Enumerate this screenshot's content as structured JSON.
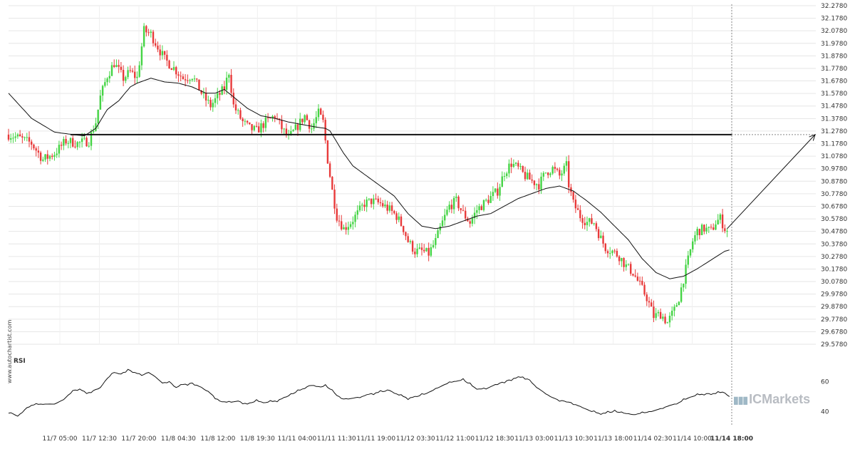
{
  "chart_data": {
    "type": "candlestick",
    "y_axis": {
      "ticks": [
        "32.2780",
        "32.1780",
        "32.0780",
        "31.9780",
        "31.8780",
        "31.7780",
        "31.6780",
        "31.5780",
        "31.4780",
        "31.3780",
        "31.2780",
        "31.1780",
        "31.0780",
        "30.9780",
        "30.8780",
        "30.7780",
        "30.6780",
        "30.5780",
        "30.4780",
        "30.3780",
        "30.2780",
        "30.1780",
        "30.0780",
        "29.9780",
        "29.8780",
        "29.7780",
        "29.6780",
        "29.5780"
      ],
      "range": [
        29.578,
        32.278
      ],
      "position": "right"
    },
    "x_axis": {
      "ticks": [
        "11/7 05:00",
        "11/7 12:30",
        "11/7 20:00",
        "11/8 04:30",
        "11/8 12:00",
        "11/8 19:30",
        "11/11 04:00",
        "11/11 11:30",
        "11/11 19:00",
        "11/12 03:30",
        "11/12 11:00",
        "11/12 18:30",
        "11/13 03:00",
        "11/13 10:30",
        "11/13 18:00",
        "11/14 02:30",
        "11/14 10:00",
        "11/14 18:00"
      ],
      "highlight": "11/14 18:00"
    },
    "price_anchors": [
      [
        0,
        31.25
      ],
      [
        5,
        31.22
      ],
      [
        10,
        31.18
      ],
      [
        15,
        31.05
      ],
      [
        20,
        31.1
      ],
      [
        25,
        31.2
      ],
      [
        30,
        31.18
      ],
      [
        35,
        31.2
      ],
      [
        38,
        31.35
      ],
      [
        40,
        31.55
      ],
      [
        43,
        31.72
      ],
      [
        46,
        31.82
      ],
      [
        50,
        31.7
      ],
      [
        53,
        31.75
      ],
      [
        56,
        31.7
      ],
      [
        59,
        32.08
      ],
      [
        62,
        32.05
      ],
      [
        65,
        31.95
      ],
      [
        68,
        31.85
      ],
      [
        72,
        31.78
      ],
      [
        76,
        31.7
      ],
      [
        80,
        31.72
      ],
      [
        82,
        31.65
      ],
      [
        85,
        31.55
      ],
      [
        88,
        31.48
      ],
      [
        91,
        31.55
      ],
      [
        94,
        31.62
      ],
      [
        96,
        31.75
      ],
      [
        98,
        31.48
      ],
      [
        102,
        31.35
      ],
      [
        105,
        31.3
      ],
      [
        108,
        31.28
      ],
      [
        112,
        31.35
      ],
      [
        116,
        31.4
      ],
      [
        119,
        31.3
      ],
      [
        122,
        31.22
      ],
      [
        126,
        31.32
      ],
      [
        129,
        31.4
      ],
      [
        132,
        31.3
      ],
      [
        135,
        31.42
      ],
      [
        137,
        31.35
      ],
      [
        139,
        31.05
      ],
      [
        141,
        30.8
      ],
      [
        143,
        30.6
      ],
      [
        146,
        30.5
      ],
      [
        149,
        30.55
      ],
      [
        152,
        30.62
      ],
      [
        155,
        30.7
      ],
      [
        158,
        30.72
      ],
      [
        162,
        30.7
      ],
      [
        166,
        30.65
      ],
      [
        169,
        30.6
      ],
      [
        172,
        30.5
      ],
      [
        174,
        30.4
      ],
      [
        177,
        30.32
      ],
      [
        180,
        30.32
      ],
      [
        183,
        30.3
      ],
      [
        186,
        30.4
      ],
      [
        189,
        30.55
      ],
      [
        192,
        30.68
      ],
      [
        195,
        30.72
      ],
      [
        198,
        30.62
      ],
      [
        201,
        30.55
      ],
      [
        204,
        30.65
      ],
      [
        207,
        30.7
      ],
      [
        210,
        30.75
      ],
      [
        213,
        30.8
      ],
      [
        216,
        30.95
      ],
      [
        219,
        31.02
      ],
      [
        222,
        30.98
      ],
      [
        225,
        30.92
      ],
      [
        228,
        30.88
      ],
      [
        231,
        30.85
      ],
      [
        234,
        30.95
      ],
      [
        237,
        30.98
      ],
      [
        240,
        30.92
      ],
      [
        243,
        31.0
      ],
      [
        244,
        30.85
      ],
      [
        246,
        30.7
      ],
      [
        249,
        30.6
      ],
      [
        252,
        30.55
      ],
      [
        255,
        30.55
      ],
      [
        258,
        30.42
      ],
      [
        260,
        30.35
      ],
      [
        263,
        30.32
      ],
      [
        266,
        30.28
      ],
      [
        269,
        30.2
      ],
      [
        272,
        30.15
      ],
      [
        275,
        30.05
      ],
      [
        278,
        29.95
      ],
      [
        281,
        29.8
      ],
      [
        284,
        29.82
      ],
      [
        287,
        29.75
      ],
      [
        290,
        29.85
      ],
      [
        292,
        29.95
      ],
      [
        294,
        30.1
      ],
      [
        296,
        30.25
      ],
      [
        298,
        30.4
      ],
      [
        300,
        30.48
      ],
      [
        303,
        30.5
      ],
      [
        306,
        30.48
      ],
      [
        308,
        30.55
      ],
      [
        310,
        30.58
      ],
      [
        312,
        30.5
      ],
      [
        313,
        30.48
      ]
    ],
    "moving_average": [
      [
        0,
        31.58
      ],
      [
        10,
        31.38
      ],
      [
        20,
        31.27
      ],
      [
        28,
        31.25
      ],
      [
        33,
        31.24
      ],
      [
        38,
        31.3
      ],
      [
        43,
        31.45
      ],
      [
        48,
        31.52
      ],
      [
        53,
        31.63
      ],
      [
        56,
        31.66
      ],
      [
        62,
        31.7
      ],
      [
        68,
        31.67
      ],
      [
        74,
        31.66
      ],
      [
        80,
        31.63
      ],
      [
        86,
        31.58
      ],
      [
        90,
        31.58
      ],
      [
        94,
        31.61
      ],
      [
        98,
        31.55
      ],
      [
        104,
        31.46
      ],
      [
        110,
        31.4
      ],
      [
        116,
        31.38
      ],
      [
        122,
        31.35
      ],
      [
        128,
        31.33
      ],
      [
        134,
        31.31
      ],
      [
        138,
        31.3
      ],
      [
        140,
        31.28
      ],
      [
        146,
        31.1
      ],
      [
        150,
        31.0
      ],
      [
        156,
        30.92
      ],
      [
        162,
        30.84
      ],
      [
        168,
        30.76
      ],
      [
        174,
        30.62
      ],
      [
        180,
        30.52
      ],
      [
        186,
        30.5
      ],
      [
        192,
        30.52
      ],
      [
        198,
        30.56
      ],
      [
        204,
        30.6
      ],
      [
        210,
        30.62
      ],
      [
        216,
        30.68
      ],
      [
        222,
        30.74
      ],
      [
        228,
        30.78
      ],
      [
        234,
        30.82
      ],
      [
        240,
        30.84
      ],
      [
        246,
        30.8
      ],
      [
        252,
        30.72
      ],
      [
        258,
        30.63
      ],
      [
        264,
        30.52
      ],
      [
        270,
        30.41
      ],
      [
        276,
        30.26
      ],
      [
        282,
        30.15
      ],
      [
        288,
        30.1
      ],
      [
        294,
        30.12
      ],
      [
        300,
        30.18
      ],
      [
        306,
        30.25
      ],
      [
        312,
        30.32
      ],
      [
        314,
        30.33
      ]
    ],
    "horizontal_level": 31.25,
    "projection": {
      "from": [
        313,
        30.5
      ],
      "to": "right-edge",
      "target": 31.25
    },
    "annotations": {
      "current_time_line": "11/14 18:00"
    },
    "rsi": {
      "title": "RSI",
      "ticks": [
        "60",
        "40"
      ],
      "range": [
        36,
        71
      ],
      "values": [
        [
          0,
          40
        ],
        [
          4,
          37
        ],
        [
          9,
          44
        ],
        [
          14,
          45
        ],
        [
          20,
          45
        ],
        [
          24,
          48
        ],
        [
          28,
          54
        ],
        [
          31,
          55
        ],
        [
          34,
          52
        ],
        [
          37,
          54
        ],
        [
          40,
          56
        ],
        [
          43,
          62
        ],
        [
          46,
          66
        ],
        [
          49,
          65
        ],
        [
          52,
          68
        ],
        [
          55,
          66
        ],
        [
          58,
          64
        ],
        [
          61,
          66
        ],
        [
          64,
          63
        ],
        [
          67,
          59
        ],
        [
          70,
          60
        ],
        [
          73,
          56
        ],
        [
          76,
          58
        ],
        [
          80,
          59
        ],
        [
          84,
          56
        ],
        [
          88,
          52
        ],
        [
          92,
          47
        ],
        [
          96,
          46
        ],
        [
          100,
          47
        ],
        [
          104,
          45
        ],
        [
          108,
          47
        ],
        [
          112,
          46
        ],
        [
          116,
          47
        ],
        [
          120,
          49
        ],
        [
          124,
          52
        ],
        [
          128,
          55
        ],
        [
          132,
          58
        ],
        [
          135,
          56
        ],
        [
          138,
          57
        ],
        [
          141,
          54
        ],
        [
          144,
          49
        ],
        [
          147,
          48
        ],
        [
          150,
          49
        ],
        [
          154,
          50
        ],
        [
          158,
          52
        ],
        [
          162,
          53
        ],
        [
          166,
          54
        ],
        [
          170,
          51
        ],
        [
          174,
          49
        ],
        [
          178,
          50
        ],
        [
          182,
          52
        ],
        [
          186,
          55
        ],
        [
          190,
          58
        ],
        [
          194,
          60
        ],
        [
          198,
          61
        ],
        [
          201,
          58
        ],
        [
          204,
          55
        ],
        [
          208,
          55
        ],
        [
          212,
          58
        ],
        [
          216,
          60
        ],
        [
          220,
          62
        ],
        [
          224,
          63
        ],
        [
          227,
          61
        ],
        [
          230,
          56
        ],
        [
          233,
          53
        ],
        [
          236,
          50
        ],
        [
          239,
          48
        ],
        [
          242,
          47
        ],
        [
          245,
          46
        ],
        [
          248,
          44
        ],
        [
          251,
          42
        ],
        [
          254,
          40
        ],
        [
          257,
          39
        ],
        [
          260,
          39
        ],
        [
          264,
          40
        ],
        [
          268,
          39
        ],
        [
          272,
          38
        ],
        [
          276,
          39
        ],
        [
          280,
          40
        ],
        [
          284,
          42
        ],
        [
          288,
          44
        ],
        [
          292,
          46
        ],
        [
          296,
          49
        ],
        [
          300,
          51
        ],
        [
          304,
          52
        ],
        [
          308,
          52
        ],
        [
          311,
          53
        ],
        [
          314,
          50
        ]
      ]
    }
  },
  "labels": {
    "rsi_title": "RSI",
    "watermark": "www.autochartist.com",
    "logo": "ICMarkets"
  },
  "colors": {
    "up": "#44d444",
    "down": "#e83a3a",
    "grid": "#e6e6e6",
    "line": "#111111"
  }
}
